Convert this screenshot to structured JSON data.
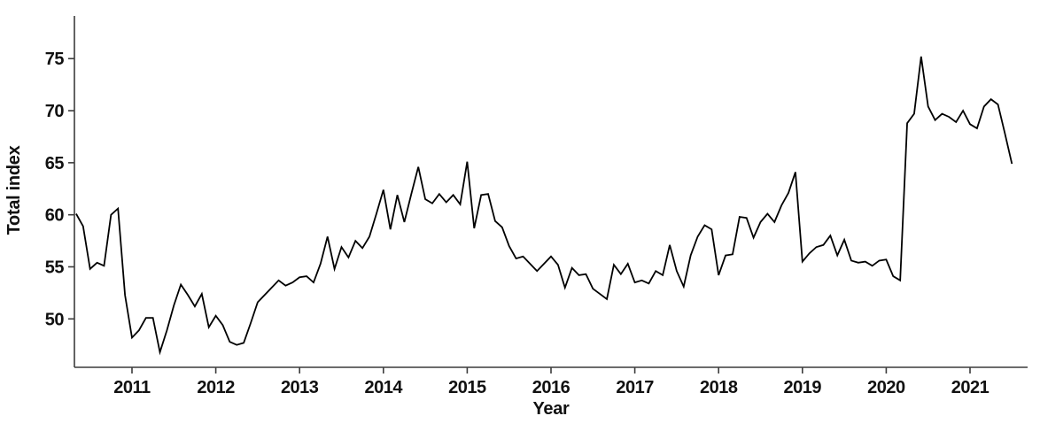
{
  "chart_data": {
    "type": "line",
    "title": "",
    "xlabel": "Year",
    "ylabel": "Total index",
    "legend": "none",
    "grid": false,
    "line_color": "#000000",
    "axis_color": "#3c3c3c",
    "text_color": "#111111",
    "x_ticks": [
      2011,
      2012,
      2013,
      2014,
      2015,
      2016,
      2017,
      2018,
      2019,
      2020,
      2021
    ],
    "y_ticks": [
      50,
      55,
      60,
      65,
      70,
      75
    ],
    "xlim": [
      2010.313,
      2021.687
    ],
    "ylim": [
      45.35,
      79.1
    ],
    "x_unit": "month",
    "series": [
      {
        "name": "Total index",
        "start_year_fraction": 2010.3333,
        "points_per_year": 12,
        "values": [
          60.1,
          58.9,
          54.8,
          55.4,
          55.1,
          60.0,
          60.6,
          52.3,
          48.2,
          48.9,
          50.1,
          50.1,
          46.8,
          48.9,
          51.3,
          53.3,
          52.3,
          51.2,
          52.4,
          49.2,
          50.3,
          49.4,
          47.8,
          47.5,
          47.7,
          49.6,
          51.6,
          52.3,
          53.0,
          53.7,
          53.2,
          53.5,
          54.0,
          54.1,
          53.5,
          55.3,
          57.9,
          54.8,
          56.9,
          55.9,
          57.5,
          56.8,
          57.9,
          60.1,
          62.4,
          58.6,
          61.9,
          59.3,
          62.0,
          64.6,
          61.5,
          61.1,
          62.0,
          61.2,
          61.9,
          61.0,
          65.1,
          58.7,
          61.9,
          62.0,
          59.4,
          58.8,
          57.0,
          55.8,
          56.0,
          55.3,
          54.6,
          55.3,
          56.0,
          55.2,
          53.0,
          54.9,
          54.2,
          54.3,
          52.9,
          52.4,
          51.9,
          55.2,
          54.3,
          55.3,
          53.5,
          53.7,
          53.4,
          54.6,
          54.2,
          57.1,
          54.6,
          53.1,
          56.1,
          57.9,
          59.0,
          58.6,
          54.2,
          56.1,
          56.2,
          59.8,
          59.7,
          57.8,
          59.3,
          60.1,
          59.3,
          60.9,
          62.1,
          64.1,
          55.5,
          56.3,
          56.9,
          57.1,
          58.0,
          56.1,
          57.6,
          55.6,
          55.4,
          55.5,
          55.1,
          55.6,
          55.7,
          54.1,
          53.7,
          68.8,
          69.7,
          75.2,
          70.4,
          69.1,
          69.7,
          69.4,
          68.9,
          70.0,
          68.7,
          68.3,
          70.4,
          71.1,
          70.6,
          67.8,
          64.9
        ]
      }
    ]
  }
}
